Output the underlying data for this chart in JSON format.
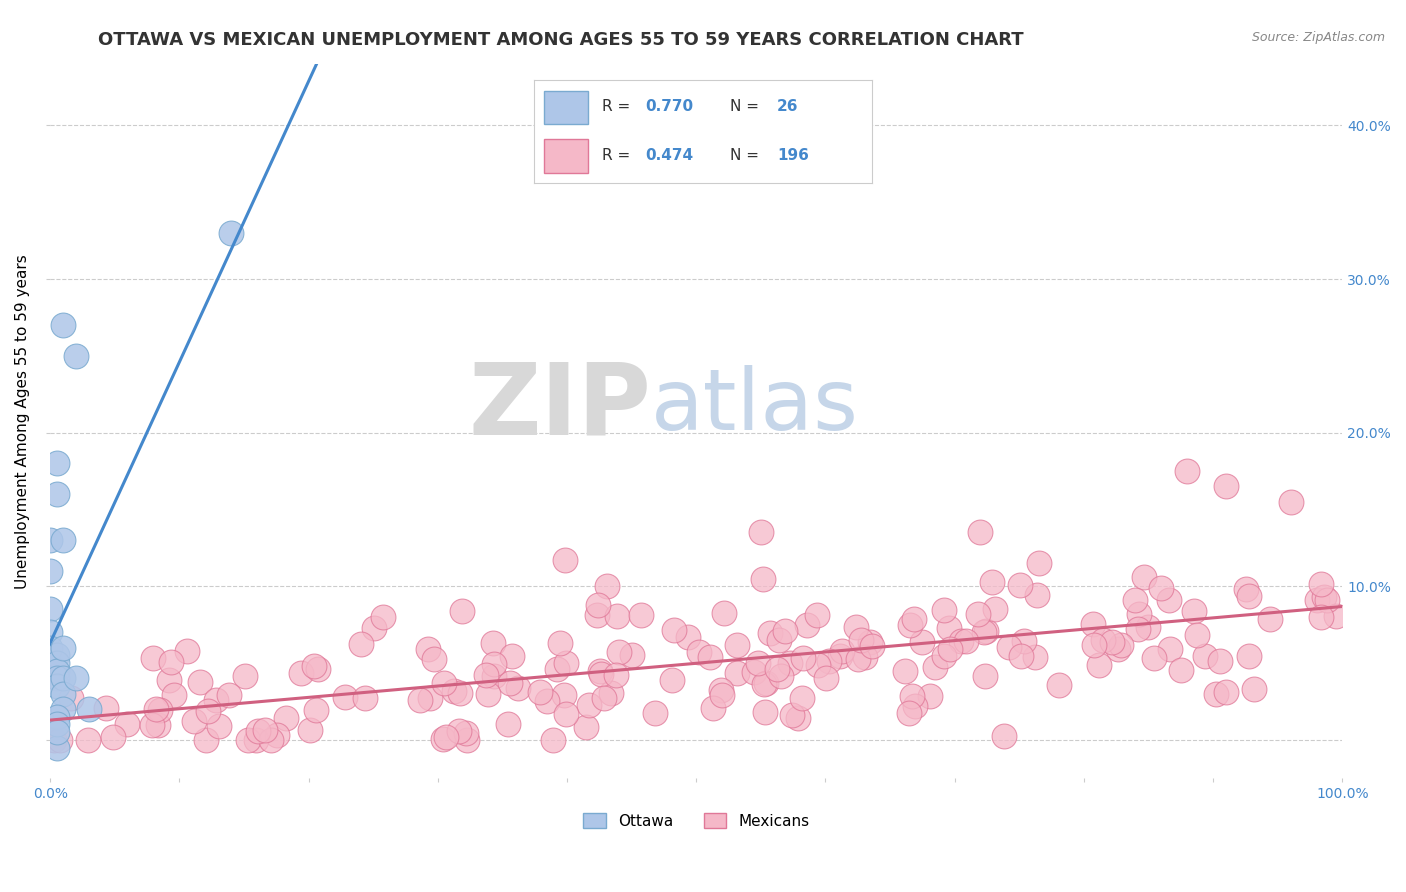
{
  "title": "OTTAWA VS MEXICAN UNEMPLOYMENT AMONG AGES 55 TO 59 YEARS CORRELATION CHART",
  "source_text": "Source: ZipAtlas.com",
  "ylabel": "Unemployment Among Ages 55 to 59 years",
  "xlim": [
    0.0,
    1.0
  ],
  "ylim": [
    -0.025,
    0.44
  ],
  "x_ticks": [
    0.0,
    0.1,
    0.2,
    0.3,
    0.4,
    0.5,
    0.6,
    0.7,
    0.8,
    0.9,
    1.0
  ],
  "x_tick_labels": [
    "0.0%",
    "",
    "",
    "",
    "",
    "",
    "",
    "",
    "",
    "",
    "100.0%"
  ],
  "y_tick_positions": [
    0.0,
    0.1,
    0.2,
    0.3,
    0.4
  ],
  "y_tick_labels": [
    "",
    "10.0%",
    "20.0%",
    "30.0%",
    "40.0%"
  ],
  "grid_color": "#cccccc",
  "background_color": "#ffffff",
  "ottawa_color": "#aec6e8",
  "ottawa_edge_color": "#7aaad0",
  "mexican_color": "#f5b8c8",
  "mexican_edge_color": "#e07898",
  "ottawa_line_color": "#4488cc",
  "mexican_line_color": "#d06080",
  "ottawa_R": 0.77,
  "ottawa_N": 26,
  "mexican_R": 0.474,
  "mexican_N": 196,
  "watermark_zip": "ZIP",
  "watermark_atlas": "atlas",
  "legend_label_ottawa": "Ottawa",
  "legend_label_mexican": "Mexicans",
  "title_fontsize": 13,
  "axis_label_fontsize": 11,
  "tick_fontsize": 10,
  "tick_color": "#4488cc",
  "legend_R_color": "#4488cc",
  "legend_N_color": "#4488cc",
  "ottawa_seed": 42,
  "mexican_seed": 123
}
